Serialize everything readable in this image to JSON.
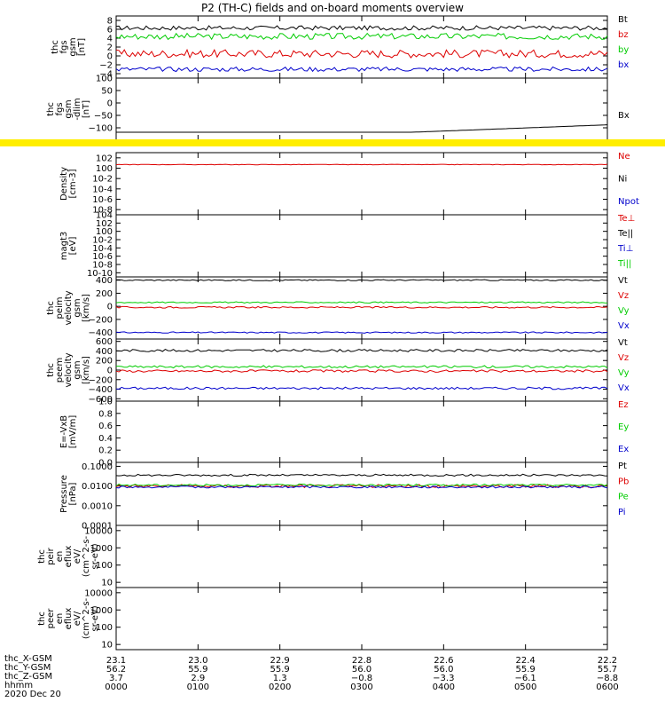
{
  "title": "P2 (TH-C) fields and on-board moments overview",
  "colors": {
    "black": "#000000",
    "red": "#dd0000",
    "green": "#00cc00",
    "blue": "#0000cc",
    "yellow": "#ffee00"
  },
  "chart_data": [
    {
      "type": "line",
      "id": "fgs_gsm",
      "ylabel": [
        "thc",
        "fgs",
        "gsm",
        "[nT]"
      ],
      "ylim": [
        -5,
        9
      ],
      "yticks": [
        -4,
        -2,
        0,
        2,
        4,
        6,
        8
      ],
      "tick_labels": [
        "−4",
        "−2",
        "0",
        "2",
        "4",
        "6",
        "8"
      ],
      "series": [
        {
          "name": "Bt",
          "color": "black",
          "level": 6.3,
          "noise": 0.5
        },
        {
          "name": "bz",
          "color": "red",
          "level": 0.5,
          "noise": 0.9
        },
        {
          "name": "by",
          "color": "green",
          "level": 4.4,
          "noise": 0.7
        },
        {
          "name": "bx",
          "color": "blue",
          "level": -3.0,
          "noise": 0.5
        }
      ]
    },
    {
      "type": "line",
      "id": "fgs_gsm_dlim",
      "ylabel": [
        "thc",
        "fgs",
        "gsm",
        "-dlim",
        "[nT]"
      ],
      "ylim": [
        -150,
        100
      ],
      "yticks": [
        -100,
        -50,
        0,
        50,
        100
      ],
      "tick_labels": [
        "−100",
        "−50",
        "0",
        "50",
        "100"
      ],
      "series": [
        {
          "name": "Bx",
          "color": "black",
          "level": -110,
          "noise": 0
        }
      ]
    },
    {
      "type": "line",
      "id": "density",
      "log": true,
      "ylabel": [
        "Density",
        "[cm-3]"
      ],
      "ylim": [
        -9,
        3
      ],
      "yticks": [
        -8,
        -6,
        -4,
        -2,
        0,
        2
      ],
      "tick_labels": [
        "10-8",
        "10-6",
        "10-4",
        "10-2",
        "100",
        "102"
      ],
      "series": [
        {
          "name": "Ne",
          "color": "red",
          "level": 0.7,
          "noise": 0.05
        },
        {
          "name": "Ni",
          "color": "black",
          "level": null,
          "noise": 0
        },
        {
          "name": "Npot",
          "color": "blue",
          "level": null,
          "noise": 0
        }
      ]
    },
    {
      "type": "line",
      "id": "magt3",
      "log": true,
      "ylabel": [
        "magt3",
        "[eV]"
      ],
      "ylim": [
        -11,
        4
      ],
      "yticks": [
        -10,
        -8,
        -6,
        -4,
        -2,
        0,
        2,
        4
      ],
      "tick_labels": [
        "10-10",
        "10-8",
        "10-6",
        "10-4",
        "10-2",
        "100",
        "102",
        "104"
      ],
      "series": [
        {
          "name": "Te⊥",
          "color": "red",
          "level": null,
          "noise": 0
        },
        {
          "name": "Te||",
          "color": "black",
          "level": null,
          "noise": 0
        },
        {
          "name": "Ti⊥",
          "color": "blue",
          "level": null,
          "noise": 0
        },
        {
          "name": "Ti||",
          "color": "green",
          "level": null,
          "noise": 0
        }
      ]
    },
    {
      "type": "line",
      "id": "peim_velocity",
      "ylabel": [
        "thc",
        "peim",
        "velocity",
        "gsm",
        "[km/s]"
      ],
      "ylim": [
        -500,
        450
      ],
      "yticks": [
        -400,
        -200,
        0,
        200,
        400
      ],
      "tick_labels": [
        "−400",
        "−200",
        "0",
        "200",
        "400"
      ],
      "series": [
        {
          "name": "Vt",
          "color": "black",
          "level": 400,
          "noise": 10
        },
        {
          "name": "Vz",
          "color": "red",
          "level": -15,
          "noise": 12
        },
        {
          "name": "Vy",
          "color": "green",
          "level": 60,
          "noise": 10
        },
        {
          "name": "Vx",
          "color": "blue",
          "level": -400,
          "noise": 10
        }
      ]
    },
    {
      "type": "line",
      "id": "peem_velocity",
      "ylabel": [
        "thc",
        "peem",
        "velocity",
        "gsm",
        "[km/s]"
      ],
      "ylim": [
        -650,
        650
      ],
      "yticks": [
        -600,
        -400,
        -200,
        0,
        200,
        400,
        600
      ],
      "tick_labels": [
        "−600",
        "−400",
        "−200",
        "0",
        "200",
        "400",
        "600"
      ],
      "series": [
        {
          "name": "Vt",
          "color": "black",
          "level": 410,
          "noise": 25
        },
        {
          "name": "Vz",
          "color": "red",
          "level": -20,
          "noise": 25
        },
        {
          "name": "Vy",
          "color": "green",
          "level": 70,
          "noise": 25
        },
        {
          "name": "Vx",
          "color": "blue",
          "level": -380,
          "noise": 25
        }
      ]
    },
    {
      "type": "line",
      "id": "efield",
      "ylabel": [
        "E=-VxB",
        "[mV/m]"
      ],
      "ylim": [
        0,
        1
      ],
      "yticks": [
        0,
        0.2,
        0.4,
        0.6,
        0.8,
        1.0
      ],
      "tick_labels": [
        "0.0",
        "0.2",
        "0.4",
        "0.6",
        "0.8",
        "1.0"
      ],
      "series": [
        {
          "name": "Ez",
          "color": "red",
          "level": null,
          "noise": 0
        },
        {
          "name": "Ey",
          "color": "green",
          "level": null,
          "noise": 0
        },
        {
          "name": "Ex",
          "color": "blue",
          "level": null,
          "noise": 0
        }
      ]
    },
    {
      "type": "line",
      "id": "pressure",
      "log": true,
      "ylabel": [
        "Pressure",
        "[nPa]"
      ],
      "ylim": [
        -4,
        -0.8
      ],
      "yticks": [
        -4,
        -3,
        -2,
        -1
      ],
      "tick_labels": [
        "0.0001",
        "0.0010",
        "0.0100",
        "0.1000"
      ],
      "series": [
        {
          "name": "Pt",
          "color": "black",
          "level": -1.45,
          "noise": 0.05
        },
        {
          "name": "Pb",
          "color": "red",
          "level": -2.0,
          "noise": 0.08
        },
        {
          "name": "Pe",
          "color": "green",
          "level": -1.95,
          "noise": 0.05
        },
        {
          "name": "Pi",
          "color": "blue",
          "level": -2.05,
          "noise": 0.05
        }
      ]
    },
    {
      "type": "spectrogram",
      "id": "peir_en_eflux",
      "log": true,
      "ylabel": [
        "thc",
        "peir",
        "en",
        "eflux",
        "eV/",
        "(cm^2-s-",
        "sr-eV)"
      ],
      "ylim": [
        0.7,
        4.3
      ],
      "yticks": [
        1,
        2,
        3,
        4
      ],
      "tick_labels": [
        "10",
        "100",
        "1000",
        "10000"
      ],
      "series": []
    },
    {
      "type": "spectrogram",
      "id": "peer_en_eflux",
      "log": true,
      "ylabel": [
        "thc",
        "peer",
        "en",
        "eflux",
        "eV/",
        "(cm^2-s-",
        "sr-eV)"
      ],
      "ylim": [
        0.7,
        4.3
      ],
      "yticks": [
        1,
        2,
        3,
        4
      ],
      "tick_labels": [
        "10",
        "100",
        "1000",
        "10000"
      ],
      "series": []
    }
  ],
  "xaxis": {
    "rows": [
      {
        "label": "thc_X-GSM",
        "values": [
          "23.1",
          "23.0",
          "22.9",
          "22.8",
          "22.6",
          "22.4",
          "22.2"
        ]
      },
      {
        "label": "thc_Y-GSM",
        "values": [
          "56.2",
          "55.9",
          "55.9",
          "56.0",
          "56.0",
          "55.9",
          "55.7"
        ]
      },
      {
        "label": "thc_Z-GSM",
        "values": [
          "3.7",
          "2.9",
          "1.3",
          "−0.8",
          "−3.3",
          "−6.1",
          "−8.8"
        ]
      },
      {
        "label": "hhmm",
        "values": [
          "0000",
          "0100",
          "0200",
          "0300",
          "0400",
          "0500",
          "0600"
        ]
      }
    ],
    "date": "2020 Dec 20",
    "hours_span": 6
  }
}
